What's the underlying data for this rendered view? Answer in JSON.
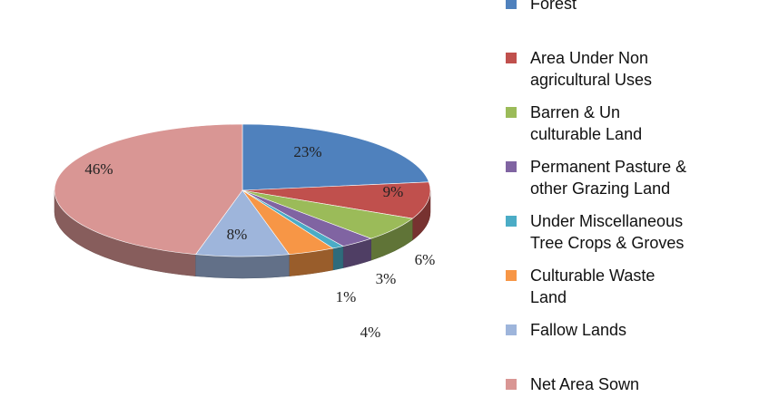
{
  "chart_data": {
    "type": "pie",
    "title": "",
    "legend_position": "right",
    "categories": [
      "Forest",
      "Area Under Non agricultural Uses",
      "Barren & Un culturable Land",
      "Permanent Pasture & other Grazing Land",
      "Under Miscellaneous Tree Crops & Groves",
      "Culturable Waste Land",
      "Fallow Lands",
      "Net Area Sown"
    ],
    "values": [
      23,
      9,
      6,
      3,
      1,
      4,
      8,
      46
    ],
    "data_labels": [
      "23%",
      "9%",
      "6%",
      "3%",
      "1%",
      "4%",
      "8%",
      "46%"
    ],
    "colors": [
      "#4f81bd",
      "#c0504d",
      "#9bbb59",
      "#8064a2",
      "#4bacc6",
      "#f79646",
      "#9eb5db",
      "#d99694"
    ]
  },
  "legend": {
    "items": [
      {
        "lines": [
          "Forest"
        ]
      },
      {
        "lines": [
          "Area Under Non",
          "agricultural Uses"
        ]
      },
      {
        "lines": [
          "Barren & Un",
          "culturable Land"
        ]
      },
      {
        "lines": [
          "Permanent Pasture &",
          "other Grazing Land"
        ]
      },
      {
        "lines": [
          "Under Miscellaneous",
          "Tree Crops & Groves"
        ]
      },
      {
        "lines": [
          "Culturable Waste",
          "Land"
        ]
      },
      {
        "lines": [
          "Fallow Lands"
        ]
      },
      {
        "lines": [
          "Net Area Sown"
        ]
      }
    ]
  }
}
